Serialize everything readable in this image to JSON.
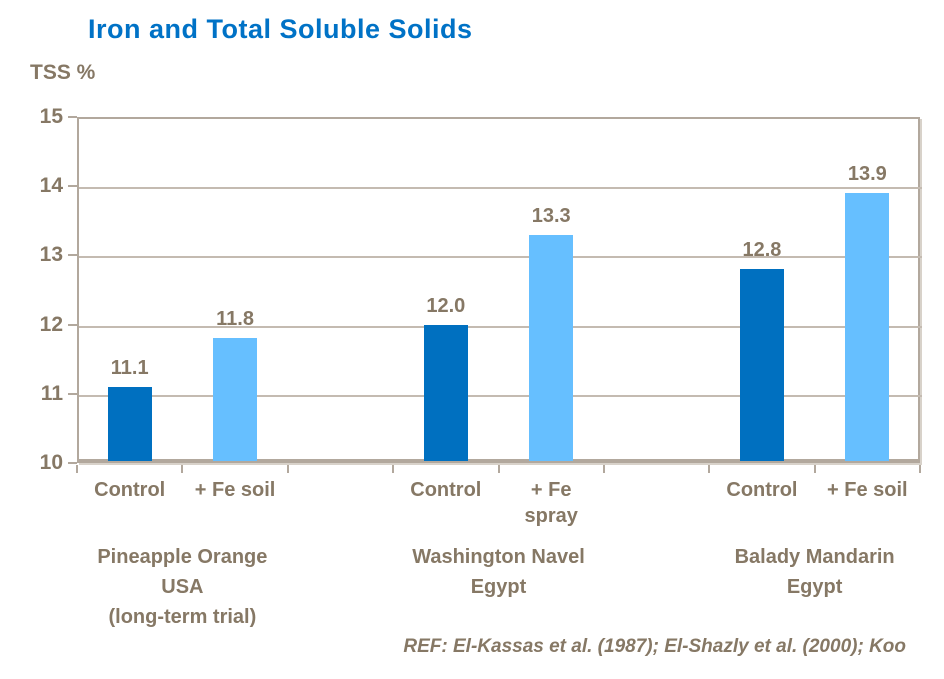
{
  "title": "Iron and Total Soluble Solids",
  "footer_ref": "REF: El-Kassas et al. (1987); El-Shazly et al. (2000); Koo",
  "colors": {
    "title_blue": "#0072C6",
    "control_bar_blue": "#0070C0",
    "fe_bar_light_blue": "#66BFFF",
    "label_brown": "#867865",
    "grid_tan": "#C4BBB1",
    "axis_tan": "#B2A89D"
  },
  "chart_data": {
    "type": "bar",
    "title": "Iron and Total Soluble Solids",
    "ylabel": "TSS %",
    "xlabel": "",
    "ylim": [
      10,
      15
    ],
    "yticks": [
      15,
      14,
      13,
      12,
      11,
      10
    ],
    "grid": true,
    "legend": "none",
    "value_decimals": 1,
    "slot_count": 8,
    "bars": [
      {
        "slot": 0,
        "category": "Control",
        "value": 11.1,
        "series": "Control"
      },
      {
        "slot": 1,
        "category": "+ Fe soil",
        "value": 11.8,
        "series": "+ Fe"
      },
      {
        "slot": 3,
        "category": "Control",
        "value": 12.0,
        "series": "Control"
      },
      {
        "slot": 4,
        "category": "+ Fe\nspray",
        "value": 13.3,
        "series": "+ Fe"
      },
      {
        "slot": 6,
        "category": "Control",
        "value": 12.8,
        "series": "Control"
      },
      {
        "slot": 7,
        "category": "+ Fe soil",
        "value": 13.9,
        "series": "+ Fe"
      }
    ],
    "groups": [
      {
        "label": "Pineapple Orange\nUSA\n(long-term trial)",
        "slots": [
          0,
          1
        ]
      },
      {
        "label": "Washington Navel\nEgypt",
        "slots": [
          3,
          4
        ]
      },
      {
        "label": "Balady Mandarin\nEgypt",
        "slots": [
          6,
          7
        ]
      }
    ]
  }
}
